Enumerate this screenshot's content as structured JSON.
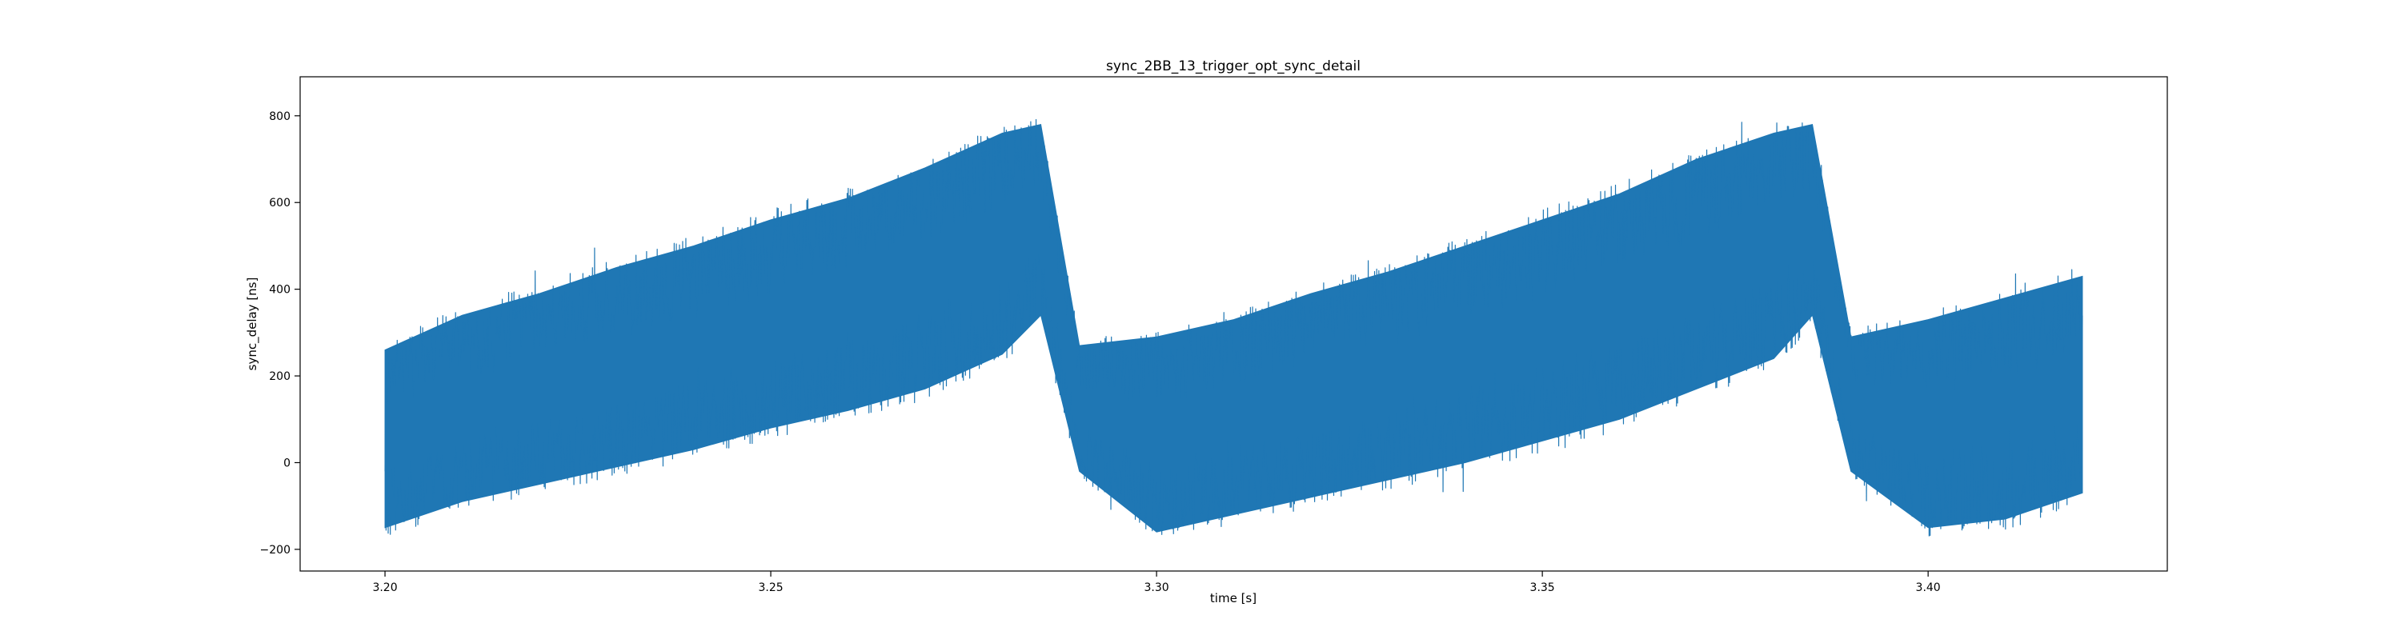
{
  "chart_data": {
    "type": "line",
    "title": "sync_2BB_13_trigger_opt_sync_detail",
    "xlabel": "time [s]",
    "ylabel": "sync_delay [ns]",
    "xlim": [
      3.189,
      3.431
    ],
    "ylim": [
      -250,
      890
    ],
    "x_ticks": [
      3.2,
      3.25,
      3.3,
      3.35,
      3.4
    ],
    "x_tick_labels": [
      "3.20",
      "3.25",
      "3.30",
      "3.35",
      "3.40"
    ],
    "y_ticks": [
      -200,
      0,
      200,
      400,
      600,
      800
    ],
    "y_tick_labels": [
      "−200",
      "0",
      "200",
      "400",
      "600",
      "800"
    ],
    "grid": false,
    "legend": "none",
    "line_color": "#1f77b4",
    "series": [
      {
        "x": [
          3.2,
          3.21,
          3.22,
          3.23,
          3.24,
          3.25,
          3.26,
          3.27,
          3.28,
          3.285,
          3.29,
          3.3,
          3.31,
          3.32,
          3.33,
          3.34,
          3.35,
          3.36,
          3.37,
          3.38,
          3.385,
          3.39,
          3.4,
          3.41,
          3.42
        ],
        "y_low": [
          -150,
          -90,
          -50,
          -10,
          30,
          80,
          120,
          170,
          250,
          340,
          -20,
          -160,
          -120,
          -80,
          -40,
          0,
          50,
          100,
          170,
          240,
          340,
          -20,
          -150,
          -130,
          -70
        ],
        "y_high": [
          260,
          340,
          390,
          450,
          500,
          560,
          610,
          680,
          760,
          780,
          270,
          290,
          330,
          390,
          440,
          500,
          560,
          620,
          700,
          760,
          780,
          290,
          330,
          380,
          430
        ]
      }
    ]
  }
}
